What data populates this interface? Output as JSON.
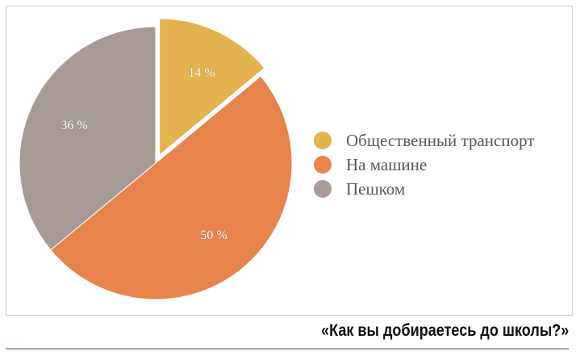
{
  "chart_data": {
    "type": "pie",
    "title": "«Как вы добираетесь до школы?»",
    "categories": [
      "Общественный транспорт",
      "На машине",
      "Пешком"
    ],
    "values": [
      14,
      50,
      36
    ],
    "labels": [
      "14 %",
      "50 %",
      "36 %"
    ],
    "colors": [
      "#e4b24f",
      "#e8834b",
      "#a69c95"
    ],
    "exploded": [
      "Общественный транспорт"
    ],
    "legend_position": "right",
    "start_angle_deg": 0,
    "direction": "clockwise"
  },
  "legend": {
    "items": [
      {
        "label": "Общественный транспорт",
        "color": "#e4b24f"
      },
      {
        "label": "На машине",
        "color": "#e8834b"
      },
      {
        "label": "Пешком",
        "color": "#a69c95"
      }
    ]
  },
  "caption": "«Как вы добираетесь до школы?»"
}
